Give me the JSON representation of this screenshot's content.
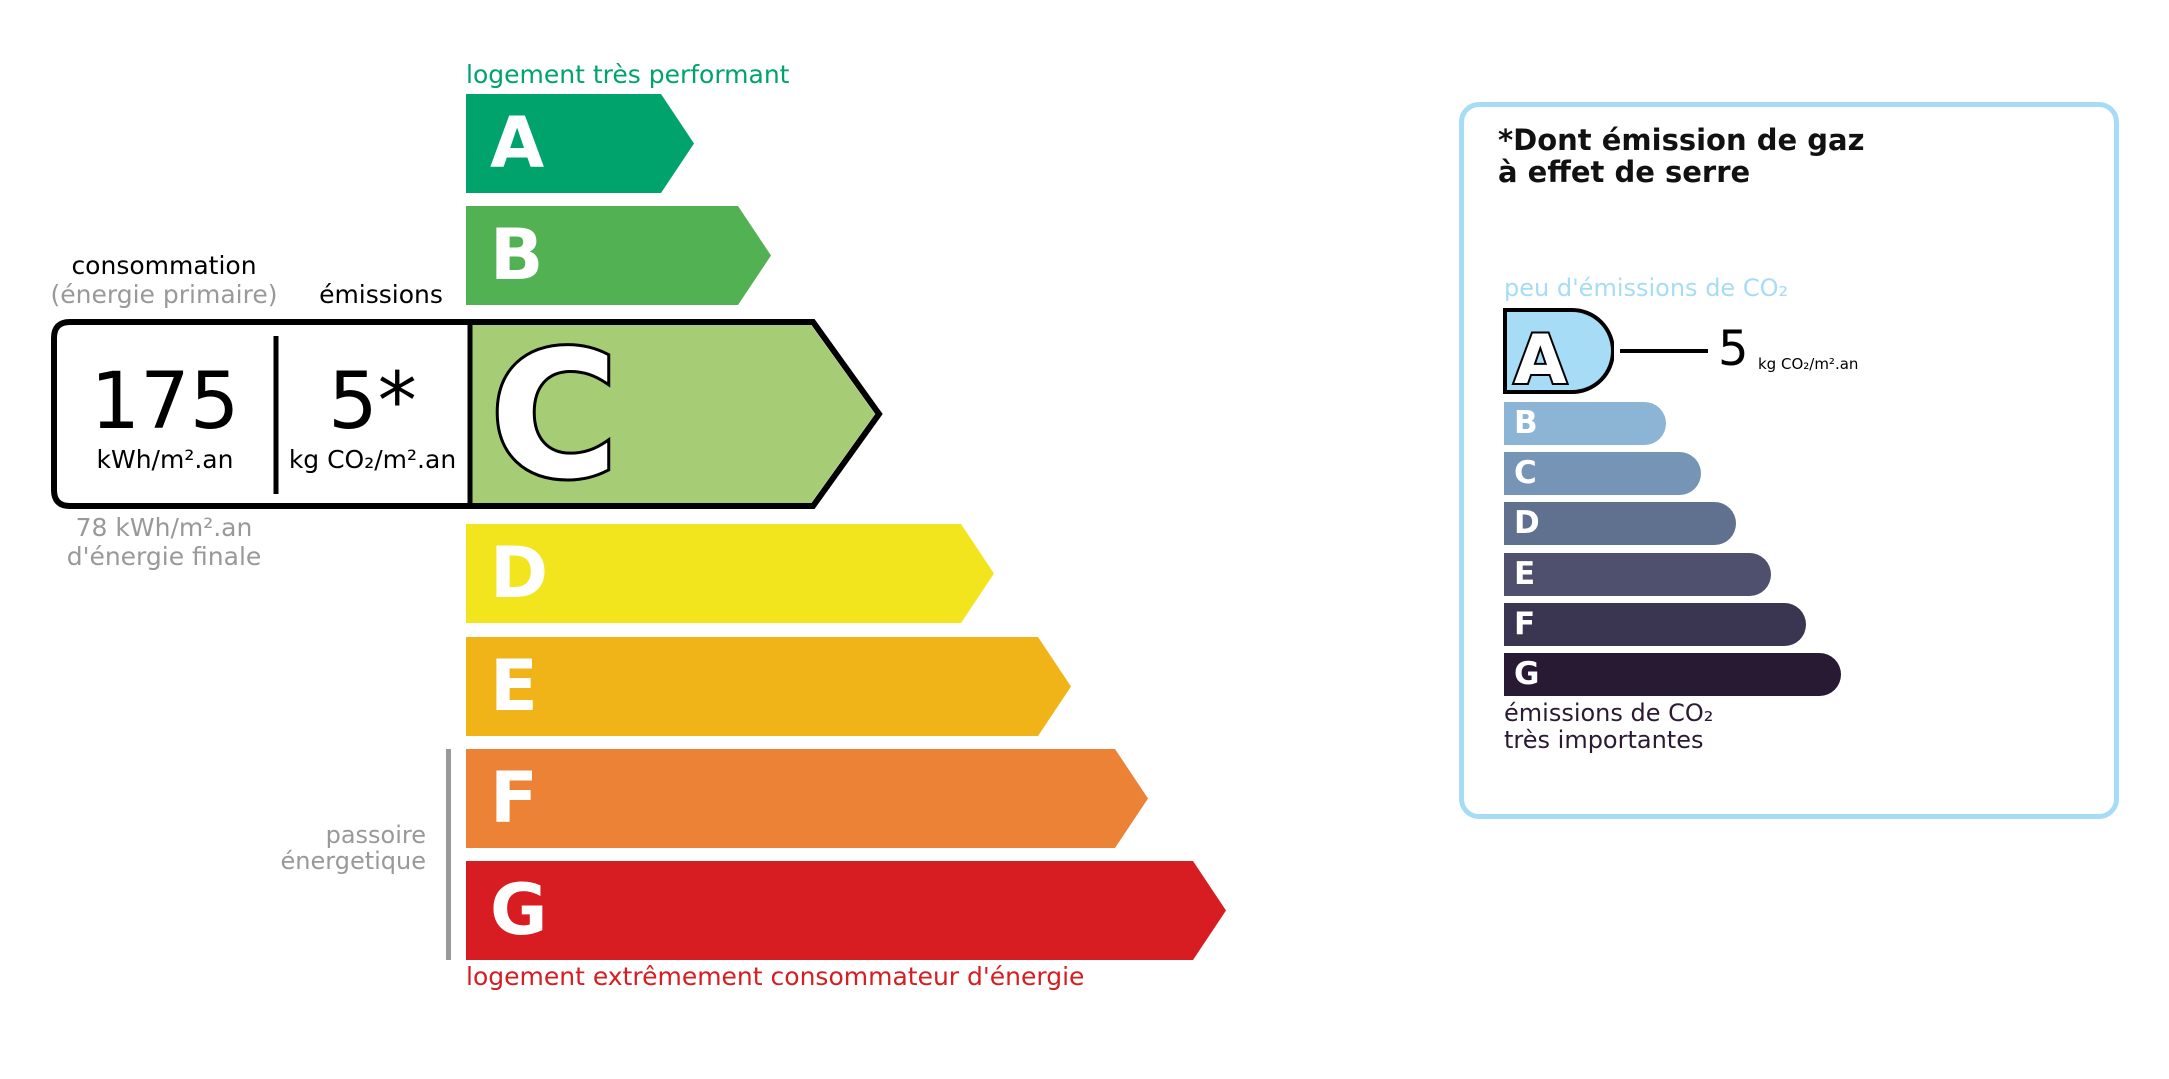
{
  "energy": {
    "top_label": "logement très performant",
    "bottom_label": "logement extrêmement consommateur d'énergie",
    "passoire_label": [
      "passoire",
      "énergetique"
    ],
    "classes": [
      {
        "letter": "A",
        "color": "#00a36c"
      },
      {
        "letter": "B",
        "color": "#52b153"
      },
      {
        "letter": "C",
        "color": "#a6cd75"
      },
      {
        "letter": "D",
        "color": "#f2e51d"
      },
      {
        "letter": "E",
        "color": "#f0b418"
      },
      {
        "letter": "F",
        "color": "#eb8235"
      },
      {
        "letter": "G",
        "color": "#d71d21"
      }
    ],
    "current_class": "C",
    "consumption_title": "consommation",
    "consumption_subtitle": "(énergie primaire)",
    "emissions_title": "émissions",
    "consumption_value": "175",
    "consumption_unit": "kWh/m².an",
    "emissions_value": "5*",
    "emissions_unit": "kg CO₂/m².an",
    "final_energy_value": "78 kWh/m².an",
    "final_energy_label": "d'énergie finale"
  },
  "ges": {
    "title_line1": "*Dont émission de gaz",
    "title_line2": "à effet de serre",
    "top_label": "peu d'émissions de CO₂",
    "bottom_label_line1": "émissions de CO₂",
    "bottom_label_line2": "très importantes",
    "current_class": "A",
    "value": "5",
    "unit": "kg CO₂/m².an",
    "border_color": "#a6dcf5",
    "classes": [
      {
        "letter": "A",
        "color": "#a6dcf5"
      },
      {
        "letter": "B",
        "color": "#8cb4d4"
      },
      {
        "letter": "C",
        "color": "#7695b6"
      },
      {
        "letter": "D",
        "color": "#60708f"
      },
      {
        "letter": "E",
        "color": "#4e506e"
      },
      {
        "letter": "F",
        "color": "#3a3551"
      },
      {
        "letter": "G",
        "color": "#291a33"
      }
    ]
  }
}
